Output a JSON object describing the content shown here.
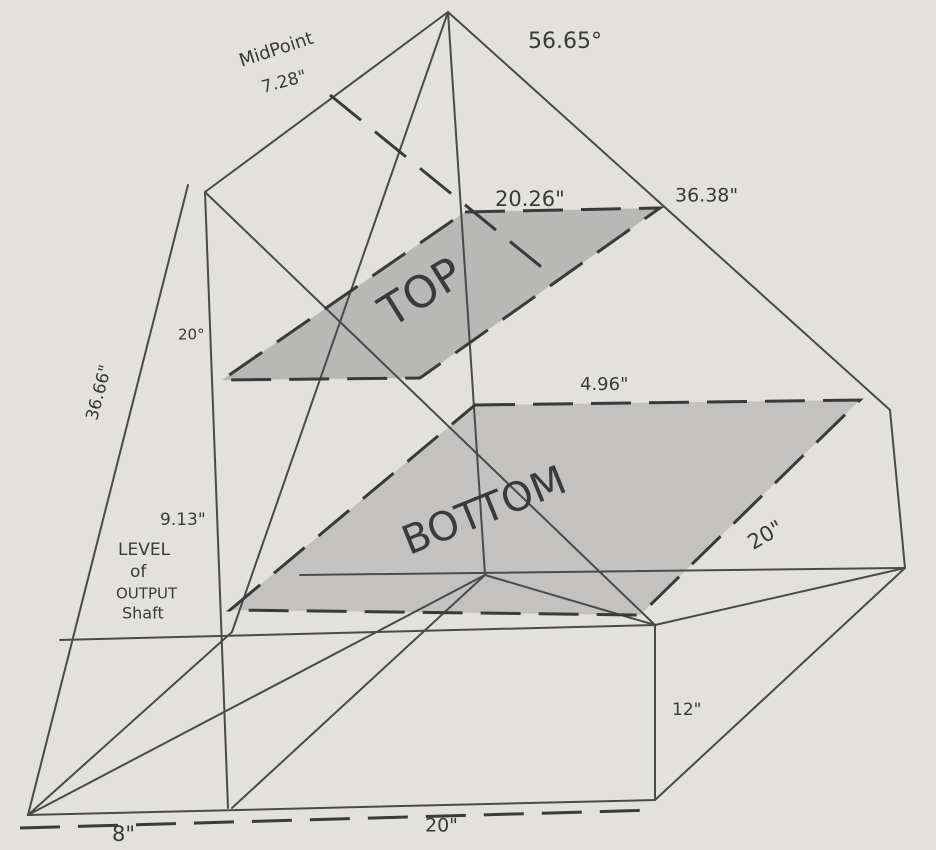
{
  "labels": {
    "midpoint": "MidPoint",
    "midpoint_length": "7.28\"",
    "apex_angle": "56.65°",
    "top_width": "20.26\"",
    "right_edge": "36.38\"",
    "top_label": "TOP",
    "side_angle": "20°",
    "left_edge": "36.66\"",
    "gap": "4.96\"",
    "shaft_height": "9.13\"",
    "level_lines": [
      "LEVEL",
      "of",
      "OUTPUT",
      "Shaft"
    ],
    "bottom_label": "BOTTOM",
    "depth": "20\"",
    "box_height": "12\"",
    "offset": "8\"",
    "width": "20\""
  }
}
